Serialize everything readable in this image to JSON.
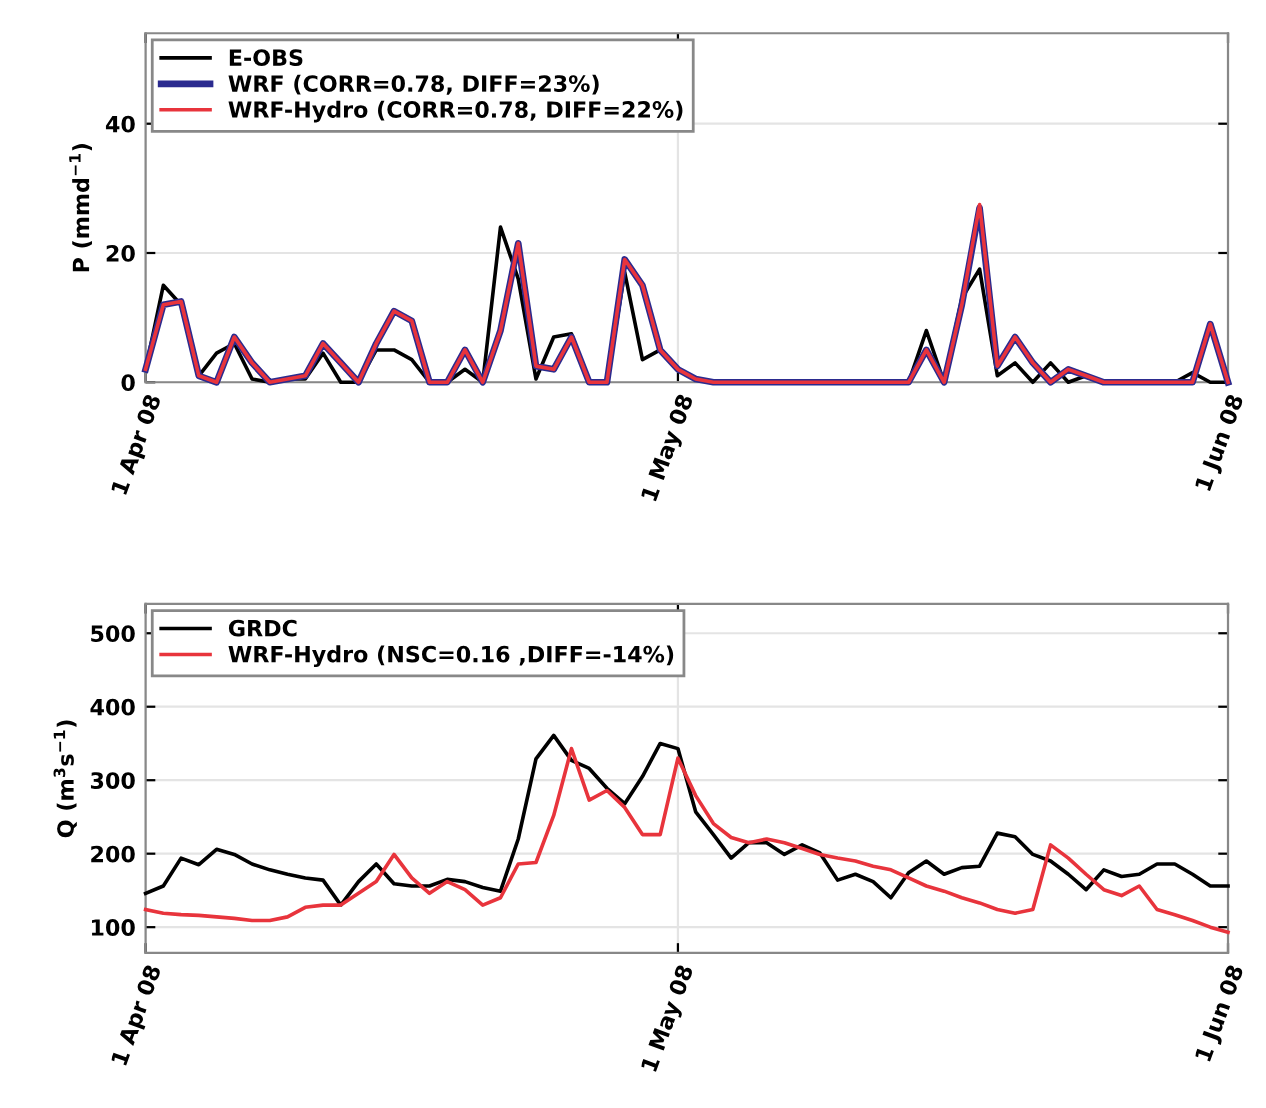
{
  "chart_data": [
    {
      "type": "line",
      "ylabel": "P (mmd$^{−1}$)",
      "x": [
        "2008-04-01",
        "2008-04-02",
        "2008-04-03",
        "2008-04-04",
        "2008-04-05",
        "2008-04-06",
        "2008-04-07",
        "2008-04-08",
        "2008-04-09",
        "2008-04-10",
        "2008-04-11",
        "2008-04-12",
        "2008-04-13",
        "2008-04-14",
        "2008-04-15",
        "2008-04-16",
        "2008-04-17",
        "2008-04-18",
        "2008-04-19",
        "2008-04-20",
        "2008-04-21",
        "2008-04-22",
        "2008-04-23",
        "2008-04-24",
        "2008-04-25",
        "2008-04-26",
        "2008-04-27",
        "2008-04-28",
        "2008-04-29",
        "2008-04-30",
        "2008-05-01",
        "2008-05-02",
        "2008-05-03",
        "2008-05-04",
        "2008-05-05",
        "2008-05-06",
        "2008-05-07",
        "2008-05-08",
        "2008-05-09",
        "2008-05-10",
        "2008-05-11",
        "2008-05-12",
        "2008-05-13",
        "2008-05-14",
        "2008-05-15",
        "2008-05-16",
        "2008-05-17",
        "2008-05-18",
        "2008-05-19",
        "2008-05-20",
        "2008-05-21",
        "2008-05-22",
        "2008-05-23",
        "2008-05-24",
        "2008-05-25",
        "2008-05-26",
        "2008-05-27",
        "2008-05-28",
        "2008-05-29",
        "2008-05-30",
        "2008-05-31",
        "2008-06-01"
      ],
      "series": [
        {
          "name": "E-OBS",
          "color": "#000000",
          "values": [
            2,
            15,
            12,
            1,
            4.5,
            6,
            0.5,
            0,
            0.5,
            0.5,
            4.5,
            0,
            0,
            5,
            5,
            3.5,
            0,
            0,
            2,
            0,
            24,
            16,
            0.5,
            7,
            7.5,
            0,
            0,
            17,
            3.5,
            5,
            2,
            0.5,
            0,
            0,
            0,
            0,
            0,
            0,
            0,
            0,
            0,
            0,
            0,
            0,
            8,
            0,
            13,
            17.5,
            1,
            3,
            0,
            3,
            0,
            1,
            0,
            0,
            0,
            0,
            0,
            1.5,
            0,
            0
          ]
        },
        {
          "name": "WRF (CORR=0.78, DIFF=23%)",
          "color": "#2b2b8f",
          "values": [
            2,
            12,
            12.5,
            1,
            0,
            7,
            3,
            0,
            0.5,
            1,
            6,
            3,
            0,
            6,
            11,
            9.5,
            0,
            0,
            5,
            0,
            8,
            21.5,
            2.5,
            2,
            7,
            0,
            0,
            19,
            15,
            5,
            2,
            0.5,
            0,
            0,
            0,
            0,
            0,
            0,
            0,
            0,
            0,
            0,
            0,
            0,
            5,
            0,
            12,
            27,
            2.5,
            7,
            3,
            0,
            2,
            1,
            0,
            0,
            0,
            0,
            0,
            0,
            9,
            0
          ]
        },
        {
          "name": "WRF-Hydro (CORR=0.78, DIFF=22%)",
          "color": "#e8343c",
          "values": [
            2,
            12,
            12.5,
            1,
            0,
            7,
            3,
            0,
            0.5,
            1,
            6,
            3,
            0,
            6,
            11,
            9.5,
            0,
            0,
            5,
            0,
            8,
            21.5,
            2.5,
            2,
            7,
            0,
            0,
            19,
            15,
            5,
            2,
            0.5,
            0,
            0,
            0,
            0,
            0,
            0,
            0,
            0,
            0,
            0,
            0,
            0,
            5,
            0,
            12,
            27.5,
            2.5,
            7,
            3,
            0,
            2,
            1,
            0,
            0,
            0,
            0,
            0,
            0,
            9,
            0
          ]
        }
      ],
      "xlim": [
        "2008-04-01",
        "2008-06-01"
      ],
      "xticks": [
        {
          "value": "2008-04-01",
          "label": "1 Apr 08"
        },
        {
          "value": "2008-05-01",
          "label": "1 May 08"
        },
        {
          "value": "2008-06-01",
          "label": "1 Jun 08"
        }
      ],
      "ylim": [
        0,
        54
      ],
      "yticks": [
        0,
        20,
        40
      ],
      "grid": true,
      "legend": "top left"
    },
    {
      "type": "line",
      "ylabel": "Q (m$^{3}$s$^{−1}$)",
      "x": [
        "2008-04-01",
        "2008-04-02",
        "2008-04-03",
        "2008-04-04",
        "2008-04-05",
        "2008-04-06",
        "2008-04-07",
        "2008-04-08",
        "2008-04-09",
        "2008-04-10",
        "2008-04-11",
        "2008-04-12",
        "2008-04-13",
        "2008-04-14",
        "2008-04-15",
        "2008-04-16",
        "2008-04-17",
        "2008-04-18",
        "2008-04-19",
        "2008-04-20",
        "2008-04-21",
        "2008-04-22",
        "2008-04-23",
        "2008-04-24",
        "2008-04-25",
        "2008-04-26",
        "2008-04-27",
        "2008-04-28",
        "2008-04-29",
        "2008-04-30",
        "2008-05-01",
        "2008-05-02",
        "2008-05-03",
        "2008-05-04",
        "2008-05-05",
        "2008-05-06",
        "2008-05-07",
        "2008-05-08",
        "2008-05-09",
        "2008-05-10",
        "2008-05-11",
        "2008-05-12",
        "2008-05-13",
        "2008-05-14",
        "2008-05-15",
        "2008-05-16",
        "2008-05-17",
        "2008-05-18",
        "2008-05-19",
        "2008-05-20",
        "2008-05-21",
        "2008-05-22",
        "2008-05-23",
        "2008-05-24",
        "2008-05-25",
        "2008-05-26",
        "2008-05-27",
        "2008-05-28",
        "2008-05-29",
        "2008-05-30",
        "2008-05-31",
        "2008-06-01"
      ],
      "series": [
        {
          "name": "GRDC",
          "color": "#000000",
          "values": [
            146,
            156,
            194,
            185,
            206,
            199,
            186,
            178,
            172,
            167,
            164,
            130,
            162,
            186,
            159,
            156,
            156,
            165,
            162,
            154,
            149,
            220,
            329,
            361,
            327,
            316,
            289,
            268,
            305,
            350,
            343,
            257,
            226,
            194,
            215,
            215,
            199,
            212,
            201,
            164,
            172,
            162,
            140,
            174,
            190,
            172,
            181,
            183,
            228,
            223,
            199,
            190,
            172,
            151,
            178,
            169,
            172,
            186,
            186,
            172,
            156,
            156
          ]
        },
        {
          "name": "WRF-Hydro (NSC=0.16 ,DIFF=-14%)",
          "color": "#e8343c",
          "values": [
            124,
            119,
            117,
            116,
            114,
            112,
            109,
            109,
            114,
            127,
            130,
            130,
            146,
            162,
            199,
            167,
            146,
            162,
            151,
            130,
            140,
            186,
            188,
            252,
            343,
            273,
            286,
            263,
            226,
            226,
            330,
            279,
            241,
            222,
            215,
            220,
            215,
            207,
            199,
            194,
            190,
            183,
            178,
            167,
            156,
            149,
            140,
            133,
            124,
            119,
            124,
            212,
            194,
            172,
            151,
            143,
            156,
            124,
            117,
            109,
            100,
            93
          ]
        }
      ],
      "xlim": [
        "2008-04-01",
        "2008-06-01"
      ],
      "xticks": [
        {
          "value": "2008-04-01",
          "label": "1 Apr 08"
        },
        {
          "value": "2008-05-01",
          "label": "1 May 08"
        },
        {
          "value": "2008-06-01",
          "label": "1 Jun 08"
        }
      ],
      "ylim": [
        65,
        540
      ],
      "yticks": [
        100,
        200,
        300,
        400,
        500
      ],
      "grid": true,
      "legend": "top left"
    }
  ]
}
